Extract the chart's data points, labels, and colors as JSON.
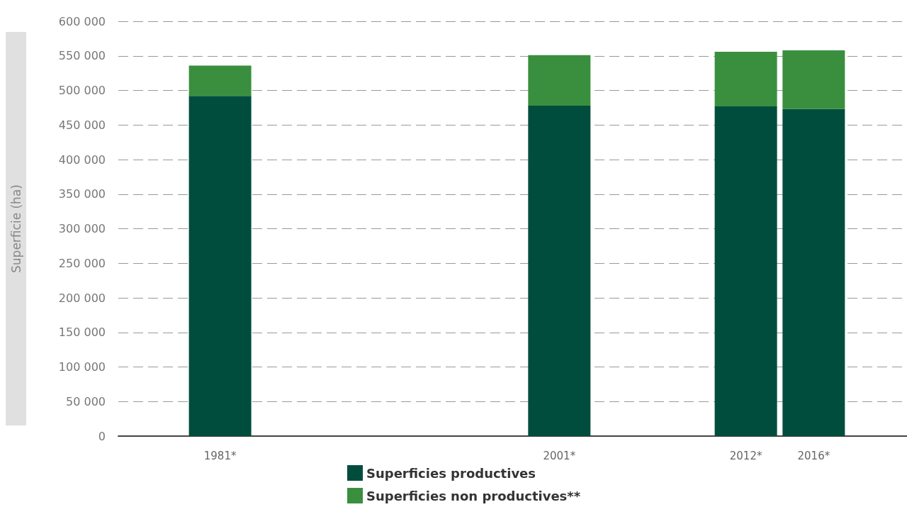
{
  "chart_data": {
    "type": "bar",
    "stacked": true,
    "ylabel": "Superficie (ha)",
    "x": [
      1981,
      2001,
      2012,
      2016
    ],
    "xlim": [
      1975,
      2021.5
    ],
    "xticks": [
      {
        "value": 1981,
        "label": "1981*"
      },
      {
        "value": 2001,
        "label": "2001*"
      },
      {
        "value": 2012,
        "label": "2012*"
      },
      {
        "value": 2016,
        "label": "2016*"
      }
    ],
    "series": [
      {
        "name": "Superficies productives",
        "color": "#004d3d",
        "values": [
          492000,
          478000,
          477000,
          473000
        ]
      },
      {
        "name": "Superficies non productives**",
        "color": "#3a8f3f",
        "values": [
          44000,
          73000,
          79000,
          85000
        ]
      }
    ],
    "ylim": [
      0,
      600000
    ],
    "yticks": [
      {
        "value": 0,
        "label": "0"
      },
      {
        "value": 50000,
        "label": "50 000"
      },
      {
        "value": 100000,
        "label": "100 000"
      },
      {
        "value": 150000,
        "label": "150 000"
      },
      {
        "value": 200000,
        "label": "200 000"
      },
      {
        "value": 250000,
        "label": "250 000"
      },
      {
        "value": 300000,
        "label": "300 000"
      },
      {
        "value": 350000,
        "label": "350 000"
      },
      {
        "value": 400000,
        "label": "400 000"
      },
      {
        "value": 450000,
        "label": "450 000"
      },
      {
        "value": 500000,
        "label": "500 000"
      },
      {
        "value": 550000,
        "label": "550 000"
      },
      {
        "value": 600000,
        "label": "600 000"
      }
    ],
    "grid": "y",
    "legend": "bottom"
  }
}
